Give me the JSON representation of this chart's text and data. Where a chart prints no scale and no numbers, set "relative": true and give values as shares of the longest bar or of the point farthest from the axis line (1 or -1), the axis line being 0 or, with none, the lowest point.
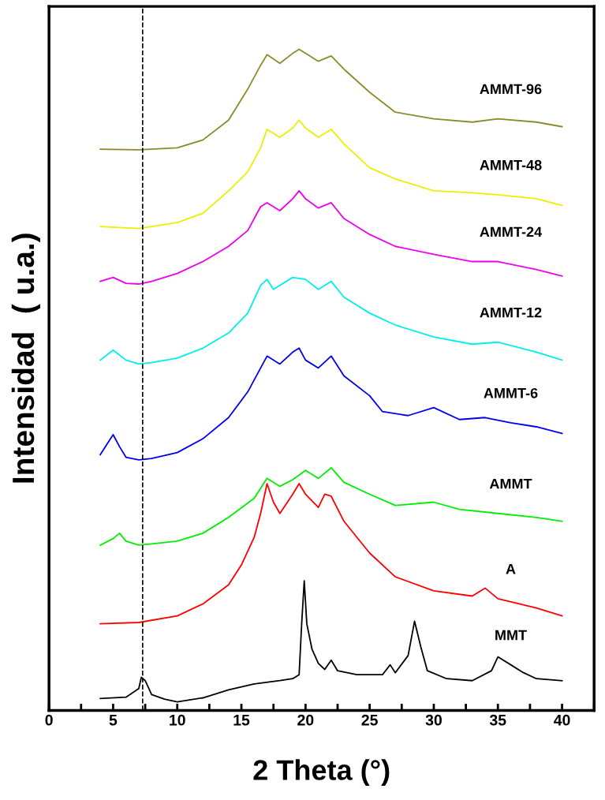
{
  "chart_data": {
    "type": "line",
    "relative": true,
    "xlabel": "2 Theta (°)",
    "ylabel": "Intensidad  ( u.a.)",
    "xlim": [
      0,
      42.5
    ],
    "xticks": [
      0,
      {
        "value": 2.5,
        "label": null
      },
      5,
      {
        "value": 7.5,
        "label": null
      },
      10,
      {
        "value": 12.5,
        "label": null
      },
      15,
      {
        "value": 17.5,
        "label": null
      },
      20,
      {
        "value": 22.5,
        "label": null
      },
      25,
      {
        "value": 27.5,
        "label": null
      },
      30,
      {
        "value": 32.5,
        "label": null
      },
      35,
      {
        "value": 37.5,
        "label": null
      },
      40,
      {
        "value": 42.5,
        "label": null
      }
    ],
    "grid": false,
    "legend": false,
    "tick_labels": "x",
    "line_style": "solid",
    "ref_lines": [
      {
        "axis": "x",
        "value": 7.3,
        "color": "#000000",
        "line_style": "dashed"
      }
    ],
    "series": [
      {
        "name": "MMT",
        "color": "#000000",
        "x": [
          4,
          6,
          7,
          7.2,
          7.5,
          8,
          9,
          10,
          12,
          14,
          16,
          18,
          19,
          19.5,
          19.7,
          19.9,
          20.1,
          20.5,
          21,
          21.5,
          22,
          22.5,
          24,
          26,
          26.6,
          27,
          28,
          28.5,
          29,
          29.5,
          31,
          33,
          34.5,
          35,
          36,
          37,
          38,
          40
        ],
        "values": [
          0.018,
          0.02,
          0.033,
          0.05,
          0.045,
          0.024,
          0.017,
          0.013,
          0.019,
          0.031,
          0.04,
          0.045,
          0.048,
          0.054,
          0.131,
          0.196,
          0.131,
          0.093,
          0.071,
          0.062,
          0.076,
          0.06,
          0.054,
          0.054,
          0.069,
          0.057,
          0.083,
          0.135,
          0.095,
          0.06,
          0.048,
          0.045,
          0.06,
          0.081,
          0.069,
          0.057,
          0.048,
          0.045
        ]
      },
      {
        "name": "A",
        "color": "#ff0000",
        "x": [
          4,
          7,
          10,
          12,
          14,
          15,
          16,
          16.5,
          17,
          17.5,
          18,
          19,
          19.5,
          20,
          21,
          21.5,
          22,
          23,
          25,
          27,
          30,
          33,
          34,
          35,
          38,
          40
        ],
        "values": [
          0.131,
          0.133,
          0.143,
          0.161,
          0.19,
          0.22,
          0.262,
          0.298,
          0.343,
          0.315,
          0.298,
          0.327,
          0.343,
          0.327,
          0.307,
          0.327,
          0.324,
          0.286,
          0.238,
          0.202,
          0.181,
          0.173,
          0.185,
          0.169,
          0.155,
          0.143
        ]
      },
      {
        "name": "AMMT",
        "color": "#00ee00",
        "x": [
          4,
          5,
          5.5,
          6,
          7,
          8,
          10,
          12,
          14,
          16,
          17,
          18,
          19,
          20,
          21,
          22,
          23,
          25,
          27,
          30,
          32,
          35,
          38,
          40
        ],
        "values": [
          0.25,
          0.26,
          0.268,
          0.256,
          0.25,
          0.252,
          0.256,
          0.268,
          0.292,
          0.321,
          0.351,
          0.339,
          0.349,
          0.363,
          0.351,
          0.367,
          0.345,
          0.327,
          0.31,
          0.315,
          0.304,
          0.298,
          0.292,
          0.286
        ]
      },
      {
        "name": "AMMT-6",
        "color": "#0000ee",
        "x": [
          4,
          4.5,
          5,
          5.5,
          6,
          7,
          8,
          10,
          12,
          14,
          15.5,
          16.5,
          17,
          18,
          19,
          19.5,
          20,
          21,
          22,
          23,
          25,
          26,
          28,
          30,
          32,
          34,
          36,
          38,
          40
        ],
        "values": [
          0.387,
          0.402,
          0.417,
          0.399,
          0.383,
          0.379,
          0.381,
          0.39,
          0.411,
          0.443,
          0.482,
          0.518,
          0.536,
          0.524,
          0.542,
          0.548,
          0.53,
          0.518,
          0.536,
          0.506,
          0.476,
          0.452,
          0.446,
          0.458,
          0.44,
          0.443,
          0.435,
          0.429,
          0.419
        ]
      },
      {
        "name": "AMMT-12",
        "color": "#00eeee",
        "x": [
          4,
          5,
          6,
          7,
          8,
          10,
          12,
          14,
          15.5,
          16.5,
          17,
          17.5,
          18,
          19,
          20,
          21,
          22,
          23,
          25,
          27,
          30,
          33,
          35,
          38,
          40
        ],
        "values": [
          0.53,
          0.545,
          0.53,
          0.524,
          0.526,
          0.533,
          0.548,
          0.571,
          0.601,
          0.643,
          0.652,
          0.637,
          0.643,
          0.655,
          0.652,
          0.637,
          0.649,
          0.625,
          0.601,
          0.583,
          0.565,
          0.554,
          0.557,
          0.542,
          0.53
        ]
      },
      {
        "name": "AMMT-24",
        "color": "#ee00ee",
        "x": [
          4,
          5,
          6,
          7,
          8,
          10,
          12,
          14,
          15.5,
          16.5,
          17,
          18,
          19,
          19.5,
          20,
          21,
          22,
          23,
          25,
          27,
          30,
          33,
          35,
          38,
          40
        ],
        "values": [
          0.649,
          0.655,
          0.646,
          0.645,
          0.649,
          0.661,
          0.679,
          0.702,
          0.726,
          0.762,
          0.768,
          0.756,
          0.774,
          0.786,
          0.774,
          0.76,
          0.768,
          0.744,
          0.72,
          0.702,
          0.69,
          0.679,
          0.679,
          0.667,
          0.657
        ]
      },
      {
        "name": "AMMT-48",
        "color": "#eeee00",
        "x": [
          4,
          7,
          10,
          12,
          14,
          15.5,
          16.5,
          17,
          18,
          19,
          19.5,
          20,
          21,
          22,
          23,
          25,
          27,
          30,
          33,
          35,
          38,
          40
        ],
        "values": [
          0.732,
          0.729,
          0.738,
          0.752,
          0.786,
          0.815,
          0.851,
          0.879,
          0.867,
          0.881,
          0.893,
          0.881,
          0.867,
          0.879,
          0.857,
          0.821,
          0.804,
          0.786,
          0.783,
          0.78,
          0.774,
          0.764
        ]
      },
      {
        "name": "AMMT-96",
        "color": "#8b8b2a",
        "x": [
          4,
          7,
          10,
          12,
          14,
          15.5,
          16.5,
          17,
          18,
          19,
          19.5,
          20,
          21,
          22,
          23,
          25,
          27,
          30,
          33,
          35,
          38,
          40
        ],
        "values": [
          0.849,
          0.848,
          0.851,
          0.863,
          0.893,
          0.94,
          0.976,
          0.992,
          0.979,
          0.994,
          1.0,
          0.994,
          0.982,
          0.99,
          0.97,
          0.935,
          0.905,
          0.895,
          0.89,
          0.895,
          0.89,
          0.883
        ]
      }
    ]
  }
}
